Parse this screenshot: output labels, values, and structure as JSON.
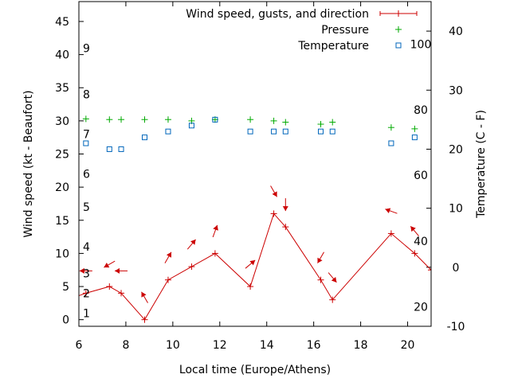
{
  "chart_data": {
    "type": "line",
    "title": "",
    "xlabel": "Local time (Europe/Athens)",
    "ylabel": "Wind speed (kt - Beaufort)",
    "y2label": "Temperature (C - F)",
    "xlim": [
      6,
      21
    ],
    "ylim": [
      -1,
      48
    ],
    "y2lim": [
      -10,
      45
    ],
    "xticks": [
      6,
      8,
      10,
      12,
      14,
      16,
      18,
      20
    ],
    "yticks": [
      0,
      5,
      10,
      15,
      20,
      25,
      30,
      35,
      40,
      45
    ],
    "y2ticks": [
      -10,
      0,
      10,
      20,
      30,
      40
    ],
    "beaufort_labels": [
      {
        "label": "1",
        "y": 1
      },
      {
        "label": "2",
        "y": 4
      },
      {
        "label": "3",
        "y": 7
      },
      {
        "label": "4",
        "y": 11
      },
      {
        "label": "5",
        "y": 17
      },
      {
        "label": "6",
        "y": 22
      },
      {
        "label": "7",
        "y": 28
      },
      {
        "label": "8",
        "y": 34
      },
      {
        "label": "9",
        "y": 41
      }
    ],
    "fahrenheit_labels": [
      {
        "label": "20",
        "y2": -6.7
      },
      {
        "label": "40",
        "y2": 4.4
      },
      {
        "label": "60",
        "y2": 15.6
      },
      {
        "label": "80",
        "y2": 26.7
      },
      {
        "label": "100",
        "y2": 37.8
      }
    ],
    "legend_position": "top-right",
    "series": [
      {
        "name": "Wind speed, gusts, and direction",
        "color": "#cc0000",
        "marker": "plus-line",
        "x": [
          5.5,
          6.3,
          7.3,
          7.8,
          8.8,
          9.8,
          10.8,
          11.8,
          13.3,
          14.3,
          14.8,
          16.3,
          16.8,
          19.3,
          20.3,
          21
        ],
        "values": [
          3,
          4,
          5,
          4,
          0,
          6,
          8,
          10,
          5,
          16,
          14,
          6,
          3,
          13,
          10,
          7.5
        ],
        "direction_deg": [
          null,
          90,
          60,
          90,
          150,
          210,
          220,
          200,
          230,
          330,
          0,
          30,
          320,
          110,
          140,
          null
        ]
      },
      {
        "name": "Pressure",
        "color": "#00aa00",
        "marker": "plus",
        "x": [
          6.3,
          7.3,
          7.8,
          8.8,
          9.8,
          10.8,
          11.8,
          13.3,
          14.3,
          14.8,
          16.3,
          16.8,
          19.3,
          20.3
        ],
        "values": [
          30.3,
          30.2,
          30.2,
          30.2,
          30.2,
          30.0,
          30.2,
          30.2,
          30.0,
          29.8,
          29.5,
          29.8,
          29.0,
          28.8
        ]
      },
      {
        "name": "Temperature",
        "color": "#0066bb",
        "marker": "square",
        "axis": "y2",
        "x": [
          6.3,
          7.3,
          7.8,
          8.8,
          9.8,
          10.8,
          11.8,
          13.3,
          14.3,
          14.8,
          16.3,
          16.8,
          19.3,
          20.3
        ],
        "values": [
          21,
          20,
          20,
          22,
          23,
          24,
          25,
          23,
          23,
          23,
          23,
          23,
          21,
          22
        ]
      }
    ]
  }
}
